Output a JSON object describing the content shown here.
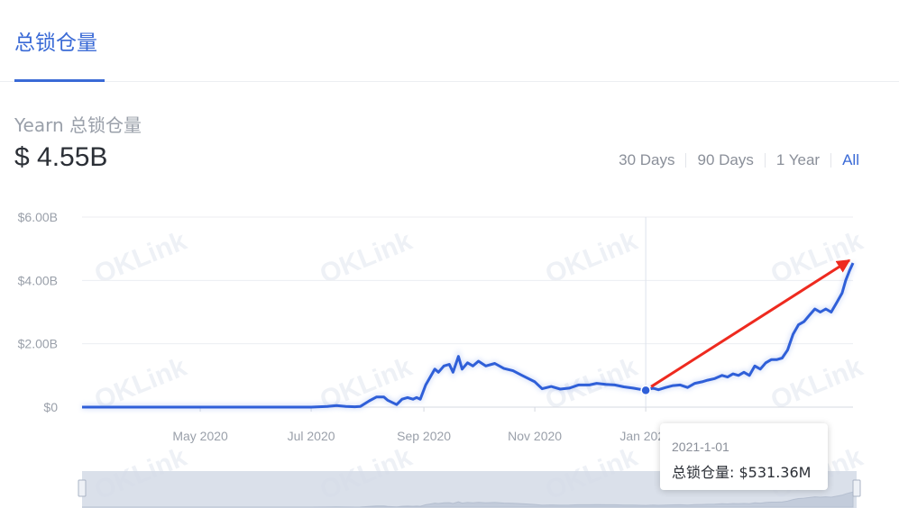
{
  "tabs": {
    "active": "总锁仓量"
  },
  "header": {
    "subtitle": "Yearn 总锁仓量",
    "tvl": "$ 4.55B"
  },
  "range_options": [
    "30 Days",
    "90 Days",
    "1 Year",
    "All"
  ],
  "range_selected": "All",
  "watermark": "OKLink",
  "colors": {
    "accent": "#3a6ad6",
    "line": "#2f5fd8",
    "arrow": "#ee2a1f",
    "navigator": "#d4dbe6"
  },
  "tooltip": {
    "date": "2021-1-01",
    "label": "总锁仓量",
    "value": "$531.36M"
  },
  "chart_data": {
    "type": "line",
    "title": "",
    "xlabel": "",
    "ylabel": "",
    "y_ticks": [
      "$0",
      "$2.00B",
      "$4.00B",
      "$6.00B"
    ],
    "x_ticks": [
      "May 2020",
      "Jul 2020",
      "Sep 2020",
      "Nov 2020",
      "Jan 2021"
    ],
    "ylim": [
      0,
      6.0
    ],
    "y_unit": "B USD",
    "grid": true,
    "series": [
      {
        "name": "总锁仓量",
        "x": [
          "2020-02-26",
          "2020-04-01",
          "2020-05-15",
          "2020-06-20",
          "2020-07-01",
          "2020-07-10",
          "2020-07-15",
          "2020-07-20",
          "2020-07-25",
          "2020-07-28",
          "2020-08-02",
          "2020-08-06",
          "2020-08-10",
          "2020-08-12",
          "2020-08-17",
          "2020-08-20",
          "2020-08-23",
          "2020-08-26",
          "2020-08-28",
          "2020-08-30",
          "2020-09-02",
          "2020-09-04",
          "2020-09-07",
          "2020-09-09",
          "2020-09-12",
          "2020-09-15",
          "2020-09-17",
          "2020-09-20",
          "2020-09-22",
          "2020-09-25",
          "2020-09-28",
          "2020-10-01",
          "2020-10-05",
          "2020-10-10",
          "2020-10-15",
          "2020-10-20",
          "2020-10-25",
          "2020-11-01",
          "2020-11-05",
          "2020-11-10",
          "2020-11-15",
          "2020-11-20",
          "2020-11-25",
          "2020-12-01",
          "2020-12-05",
          "2020-12-10",
          "2020-12-15",
          "2020-12-20",
          "2020-12-25",
          "2021-01-01",
          "2021-01-05",
          "2021-01-08",
          "2021-01-12",
          "2021-01-16",
          "2021-01-20",
          "2021-01-24",
          "2021-01-28",
          "2021-02-01",
          "2021-02-04",
          "2021-02-08",
          "2021-02-12",
          "2021-02-15",
          "2021-02-18",
          "2021-02-21",
          "2021-02-24",
          "2021-02-27",
          "2021-03-02",
          "2021-03-05",
          "2021-03-08",
          "2021-03-11",
          "2021-03-14",
          "2021-03-17",
          "2021-03-20",
          "2021-03-23",
          "2021-03-26",
          "2021-03-29",
          "2021-04-01",
          "2021-04-04",
          "2021-04-07",
          "2021-04-10",
          "2021-04-13",
          "2021-04-16",
          "2021-04-19",
          "2021-04-21",
          "2021-04-23",
          "2021-04-25"
        ],
        "values": [
          0.0,
          0.0,
          0.0,
          0.0,
          0.0,
          0.02,
          0.05,
          0.02,
          0.01,
          0.02,
          0.2,
          0.32,
          0.32,
          0.22,
          0.08,
          0.25,
          0.3,
          0.25,
          0.3,
          0.25,
          0.7,
          0.9,
          1.2,
          1.1,
          1.3,
          1.35,
          1.1,
          1.6,
          1.2,
          1.4,
          1.3,
          1.45,
          1.3,
          1.38,
          1.22,
          1.15,
          1.0,
          0.8,
          0.58,
          0.65,
          0.57,
          0.6,
          0.7,
          0.7,
          0.75,
          0.72,
          0.7,
          0.64,
          0.6,
          0.531,
          0.6,
          0.55,
          0.62,
          0.68,
          0.7,
          0.62,
          0.75,
          0.8,
          0.85,
          0.9,
          1.0,
          0.95,
          1.05,
          1.0,
          1.1,
          1.0,
          1.3,
          1.2,
          1.4,
          1.5,
          1.5,
          1.55,
          1.8,
          2.3,
          2.6,
          2.7,
          2.9,
          3.1,
          3.0,
          3.1,
          3.0,
          3.3,
          3.6,
          4.0,
          4.3,
          4.55
        ]
      }
    ],
    "highlight": {
      "x": "2021-01-01",
      "value": 0.531
    }
  }
}
